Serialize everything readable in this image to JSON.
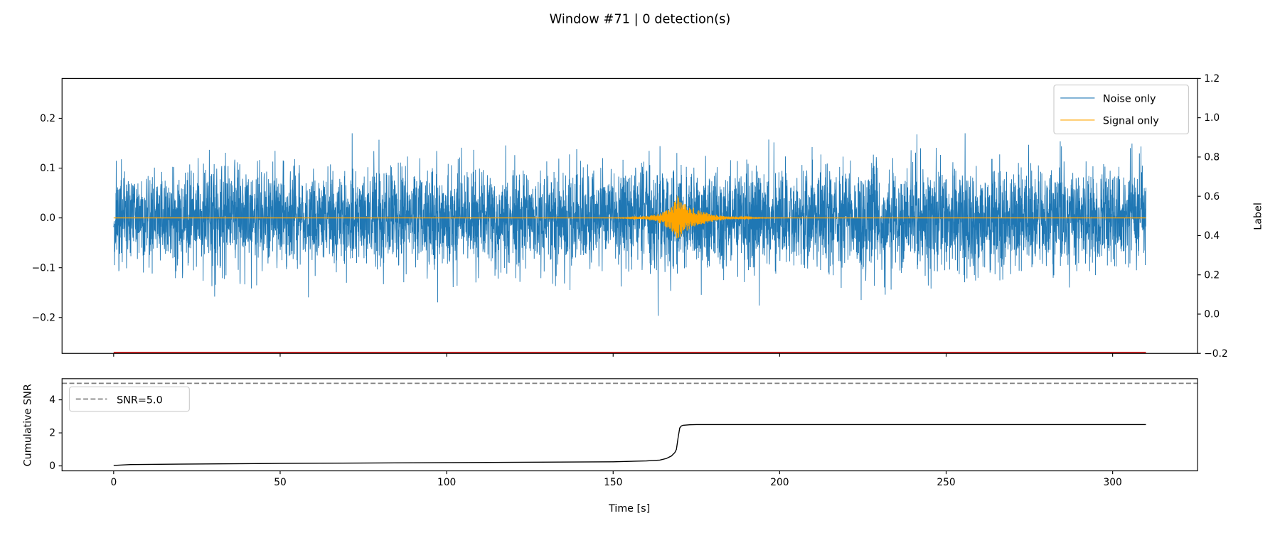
{
  "chart_data": [
    {
      "type": "line",
      "title": "Window #71 | 0 detection(s)",
      "xlabel": "",
      "ylabel": "",
      "ylabel_right": "Label",
      "xlim": [
        -15.5,
        325.5
      ],
      "ylim": [
        -0.272,
        0.28
      ],
      "ylim_right": [
        -0.2,
        1.2
      ],
      "yticks": [
        "0.2",
        "0.1",
        "0.0",
        "−0.1",
        "−0.2"
      ],
      "ytick_values": [
        0.2,
        0.1,
        0.0,
        -0.1,
        -0.2
      ],
      "yticks_right": [
        "1.2",
        "1.0",
        "0.8",
        "0.6",
        "0.4",
        "0.2",
        "0.0",
        "−0.2"
      ],
      "ytick_values_right": [
        1.2,
        1.0,
        0.8,
        0.6,
        0.4,
        0.2,
        0.0,
        -0.2
      ],
      "xtick_values": [
        0,
        50,
        100,
        150,
        200,
        250,
        300
      ],
      "legend": {
        "placement": "top-right",
        "entries": [
          "Noise only",
          "Signal only"
        ]
      },
      "series": [
        {
          "name": "Noise only",
          "color": "#1f77b4",
          "x_range": [
            0,
            310
          ],
          "std": 0.05,
          "samples": 6000
        },
        {
          "name": "Signal only",
          "color": "#ffa500",
          "event_time": 169.5,
          "peak_amplitude": 0.045
        }
      ],
      "label_line_color": "#d62728"
    },
    {
      "type": "line",
      "xlabel": "Time [s]",
      "ylabel": "Cumulative SNR",
      "xlim": [
        -15.5,
        325.5
      ],
      "ylim": [
        -0.3,
        5.28
      ],
      "yticks": [
        "0",
        "2",
        "4"
      ],
      "ytick_values": [
        0,
        2,
        4
      ],
      "xticks": [
        "0",
        "50",
        "100",
        "150",
        "200",
        "250",
        "300"
      ],
      "xtick_values": [
        0,
        50,
        100,
        150,
        200,
        250,
        300
      ],
      "legend": {
        "placement": "top-left",
        "entries": [
          "SNR=5.0"
        ]
      },
      "threshold": 5.0,
      "series": [
        {
          "name": "Cumulative SNR",
          "color": "#000000",
          "x": [
            0,
            5,
            20,
            50,
            100,
            150,
            160,
            164,
            166,
            167.5,
            168.5,
            169,
            169.5,
            170,
            170.5,
            171,
            173,
            175,
            310
          ],
          "y": [
            0.03,
            0.08,
            0.11,
            0.15,
            0.2,
            0.25,
            0.3,
            0.35,
            0.45,
            0.6,
            0.8,
            1.0,
            1.7,
            2.3,
            2.42,
            2.46,
            2.49,
            2.5,
            2.5
          ]
        }
      ]
    }
  ]
}
